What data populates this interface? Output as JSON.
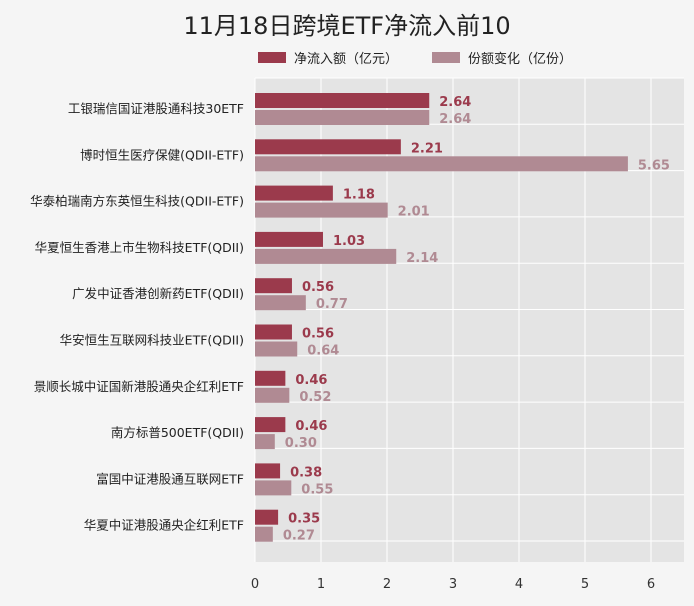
{
  "chart_data": {
    "type": "bar",
    "orientation": "horizontal",
    "title": "11月18日跨境ETF净流入前10",
    "categories": [
      "工银瑞信国证港股通科技30ETF",
      "博时恒生医疗保健(QDII-ETF)",
      "华泰柏瑞南方东英恒生科技(QDII-ETF)",
      "华夏恒生香港上市生物科技ETF(QDII)",
      "广发中证香港创新药ETF(QDII)",
      "华安恒生互联网科技业ETF(QDII)",
      "景顺长城中证国新港股通央企红利ETF",
      "南方标普500ETF(QDII)",
      "富国中证港股通互联网ETF",
      "华夏中证港股通央企红利ETF"
    ],
    "series": [
      {
        "name": "净流入额（亿元）",
        "color": "#9b3a4c",
        "values": [
          2.64,
          2.21,
          1.18,
          1.03,
          0.56,
          0.56,
          0.46,
          0.46,
          0.38,
          0.35
        ],
        "labels": [
          "2.64",
          "2.21",
          "1.18",
          "1.03",
          "0.56",
          "0.56",
          "0.46",
          "0.46",
          "0.38",
          "0.35"
        ]
      },
      {
        "name": "份额变化（亿份）",
        "color": "#b08a93",
        "values": [
          2.64,
          5.65,
          2.01,
          2.14,
          0.77,
          0.64,
          0.52,
          0.3,
          0.55,
          0.27
        ],
        "labels": [
          "2.64",
          "5.65",
          "2.01",
          "2.14",
          "0.77",
          "0.64",
          "0.52",
          "0.30",
          "0.55",
          "0.27"
        ]
      }
    ],
    "xlim": [
      0,
      6.5
    ],
    "xticks": [
      "0",
      "1",
      "2",
      "3",
      "4",
      "5",
      "6"
    ],
    "grid": true,
    "legend_position": "top"
  }
}
